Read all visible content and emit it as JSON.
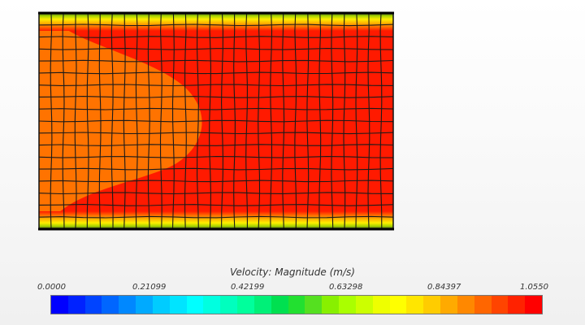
{
  "legend": {
    "title": "Velocity: Magnitude (m/s)",
    "min": 0.0,
    "max": 1.055,
    "ticks": [
      "0.0000",
      "0.21099",
      "0.42199",
      "0.63298",
      "0.84397",
      "1.0550"
    ],
    "color_stops": [
      "#0000ff",
      "#0022ff",
      "#0044ff",
      "#0066ff",
      "#0088ff",
      "#00aaff",
      "#00ccff",
      "#00e4ff",
      "#00ffff",
      "#00ffe0",
      "#00ffbe",
      "#00ff9c",
      "#00f078",
      "#00e050",
      "#22e030",
      "#55e020",
      "#88f000",
      "#aaff00",
      "#ccff00",
      "#eeff00",
      "#ffff00",
      "#ffe600",
      "#ffcc00",
      "#ffaa00",
      "#ff8800",
      "#ff6600",
      "#ff4400",
      "#ff2200",
      "#ff0000"
    ]
  },
  "field": {
    "core_color": "#ff1a00",
    "inlet_color": "#ff7300",
    "wall_color": "#c8e400",
    "grid_columns": 29,
    "grid_rows": 18
  }
}
